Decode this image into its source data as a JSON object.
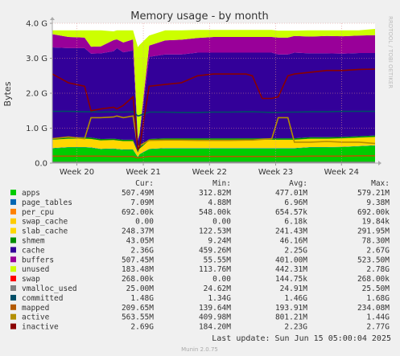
{
  "chart_data": {
    "type": "area",
    "title": "Memory usage - by month",
    "ylabel": "Bytes",
    "watermark": "RRDTOOL / TOBI OETIKER",
    "ylim": [
      0,
      4.0
    ],
    "y_ticks": [
      {
        "value": 0,
        "label": "0.0"
      },
      {
        "value": 1.0,
        "label": "1.0 G"
      },
      {
        "value": 2.0,
        "label": "2.0 G"
      },
      {
        "value": 3.0,
        "label": "3.0 G"
      },
      {
        "value": 4.0,
        "label": "4.0 G"
      }
    ],
    "x_ticks": [
      {
        "label": "Week 20",
        "t": 0.076
      },
      {
        "label": "Week 21",
        "t": 0.282
      },
      {
        "label": "Week 22",
        "t": 0.487
      },
      {
        "label": "Week 23",
        "t": 0.692
      },
      {
        "label": "Week 24",
        "t": 0.896
      }
    ],
    "grid": true,
    "legend_columns": [
      "Cur:",
      "Min:",
      "Avg:",
      "Max:"
    ],
    "x": [
      0.0,
      0.05,
      0.1,
      0.12,
      0.15,
      0.19,
      0.2,
      0.22,
      0.25,
      0.265,
      0.27,
      0.3,
      0.35,
      0.4,
      0.45,
      0.5,
      0.55,
      0.6,
      0.62,
      0.65,
      0.68,
      0.7,
      0.73,
      0.75,
      0.8,
      0.85,
      0.9,
      0.95,
      1.0
    ],
    "series": [
      {
        "name": "apps",
        "color": "#00cc00",
        "kind": "area",
        "values": [
          0.42,
          0.45,
          0.45,
          0.44,
          0.4,
          0.41,
          0.4,
          0.38,
          0.38,
          0.17,
          0.25,
          0.4,
          0.42,
          0.42,
          0.42,
          0.42,
          0.42,
          0.42,
          0.42,
          0.42,
          0.42,
          0.42,
          0.42,
          0.42,
          0.45,
          0.45,
          0.46,
          0.48,
          0.5
        ]
      },
      {
        "name": "page_tables",
        "color": "#0066b3",
        "kind": "area",
        "values": [
          0.01,
          0.01,
          0.01,
          0.01,
          0.01,
          0.01,
          0.01,
          0.01,
          0.01,
          0.01,
          0.01,
          0.01,
          0.01,
          0.01,
          0.01,
          0.01,
          0.01,
          0.01,
          0.01,
          0.01,
          0.01,
          0.01,
          0.01,
          0.01,
          0.01,
          0.01,
          0.01,
          0.01,
          0.01
        ]
      },
      {
        "name": "per_cpu",
        "color": "#ff8000",
        "kind": "area",
        "values": [
          0.0,
          0.0,
          0.0,
          0.0,
          0.0,
          0.0,
          0.0,
          0.0,
          0.0,
          0.0,
          0.0,
          0.0,
          0.0,
          0.0,
          0.0,
          0.0,
          0.0,
          0.0,
          0.0,
          0.0,
          0.0,
          0.0,
          0.0,
          0.0,
          0.0,
          0.0,
          0.0,
          0.0,
          0.0
        ]
      },
      {
        "name": "swap_cache",
        "color": "#ffcc00",
        "kind": "area",
        "values": [
          0.0,
          0.0,
          0.0,
          0.0,
          0.0,
          0.0,
          0.0,
          0.0,
          0.0,
          0.0,
          0.0,
          0.0,
          0.0,
          0.0,
          0.0,
          0.0,
          0.0,
          0.0,
          0.0,
          0.0,
          0.0,
          0.0,
          0.0,
          0.0,
          0.0,
          0.0,
          0.0,
          0.0,
          0.0
        ]
      },
      {
        "name": "slab_cache",
        "color": "#ffd700",
        "kind": "area",
        "values": [
          0.24,
          0.24,
          0.24,
          0.24,
          0.24,
          0.24,
          0.24,
          0.24,
          0.24,
          0.12,
          0.15,
          0.24,
          0.24,
          0.24,
          0.24,
          0.24,
          0.24,
          0.24,
          0.24,
          0.24,
          0.24,
          0.24,
          0.24,
          0.24,
          0.24,
          0.24,
          0.24,
          0.24,
          0.24
        ]
      },
      {
        "name": "shmem",
        "color": "#008f00",
        "kind": "area",
        "values": [
          0.04,
          0.04,
          0.04,
          0.04,
          0.04,
          0.04,
          0.04,
          0.04,
          0.04,
          0.04,
          0.04,
          0.04,
          0.04,
          0.04,
          0.04,
          0.04,
          0.04,
          0.04,
          0.04,
          0.04,
          0.04,
          0.04,
          0.04,
          0.04,
          0.04,
          0.04,
          0.04,
          0.04,
          0.04
        ]
      },
      {
        "name": "cache",
        "color": "#330099",
        "kind": "area",
        "values": [
          2.6,
          2.55,
          2.55,
          2.4,
          2.45,
          2.5,
          2.6,
          2.5,
          2.55,
          0.3,
          0.35,
          2.35,
          2.4,
          2.4,
          2.45,
          2.45,
          2.45,
          2.45,
          2.45,
          2.45,
          2.45,
          2.4,
          2.4,
          2.45,
          2.4,
          2.4,
          2.38,
          2.38,
          2.36
        ]
      },
      {
        "name": "buffers",
        "color": "#990099",
        "kind": "area",
        "values": [
          0.38,
          0.32,
          0.3,
          0.2,
          0.2,
          0.32,
          0.25,
          0.28,
          0.32,
          0.05,
          0.05,
          0.32,
          0.4,
          0.42,
          0.42,
          0.45,
          0.45,
          0.45,
          0.45,
          0.45,
          0.45,
          0.48,
          0.48,
          0.48,
          0.48,
          0.5,
          0.5,
          0.5,
          0.51
        ]
      },
      {
        "name": "unused",
        "color": "#ccff00",
        "kind": "area",
        "values": [
          0.11,
          0.19,
          0.21,
          0.47,
          0.46,
          0.25,
          0.26,
          0.35,
          0.26,
          2.63,
          2.53,
          0.29,
          0.29,
          0.27,
          0.23,
          0.2,
          0.2,
          0.2,
          0.2,
          0.2,
          0.2,
          0.2,
          0.2,
          0.15,
          0.18,
          0.16,
          0.17,
          0.15,
          0.18
        ]
      },
      {
        "name": "swap",
        "color": "#ff0000",
        "kind": "area",
        "values": [
          0.0,
          0.0,
          0.0,
          0.0,
          0.0,
          0.0,
          0.0,
          0.0,
          0.0,
          0.0,
          0.0,
          0.0,
          0.0,
          0.0,
          0.0,
          0.0,
          0.0,
          0.0,
          0.0,
          0.0,
          0.0,
          0.0,
          0.0,
          0.0,
          0.0,
          0.0,
          0.0,
          0.0,
          0.0
        ]
      },
      {
        "name": "vmalloc_used",
        "color": "#808080",
        "kind": "line",
        "values": [
          0.025,
          0.025,
          0.025,
          0.025,
          0.025,
          0.025,
          0.025,
          0.025,
          0.025,
          0.025,
          0.025,
          0.025,
          0.025,
          0.025,
          0.025,
          0.025,
          0.025,
          0.025,
          0.025,
          0.025,
          0.025,
          0.025,
          0.025,
          0.025,
          0.025,
          0.025,
          0.025,
          0.025,
          0.025
        ]
      },
      {
        "name": "committed",
        "color": "#004d66",
        "kind": "line",
        "values": [
          1.48,
          1.48,
          1.47,
          1.47,
          1.46,
          1.47,
          1.46,
          1.46,
          1.47,
          1.35,
          1.36,
          1.46,
          1.46,
          1.45,
          1.45,
          1.46,
          1.46,
          1.47,
          1.47,
          1.46,
          1.45,
          1.45,
          1.46,
          1.46,
          1.47,
          1.47,
          1.48,
          1.48,
          1.48
        ]
      },
      {
        "name": "mapped",
        "color": "#b35a00",
        "kind": "line",
        "values": [
          0.2,
          0.2,
          0.2,
          0.2,
          0.2,
          0.19,
          0.19,
          0.19,
          0.19,
          0.15,
          0.16,
          0.19,
          0.19,
          0.19,
          0.19,
          0.19,
          0.19,
          0.19,
          0.19,
          0.19,
          0.19,
          0.19,
          0.19,
          0.19,
          0.2,
          0.2,
          0.2,
          0.21,
          0.21
        ]
      },
      {
        "name": "active",
        "color": "#b38f00",
        "kind": "line",
        "values": [
          0.7,
          0.75,
          0.7,
          1.3,
          1.3,
          1.32,
          1.35,
          1.3,
          1.35,
          0.45,
          0.5,
          0.65,
          0.66,
          0.66,
          0.65,
          0.65,
          0.65,
          0.66,
          0.66,
          0.68,
          0.7,
          1.3,
          1.3,
          0.6,
          0.6,
          0.62,
          0.6,
          0.6,
          0.56
        ]
      },
      {
        "name": "inactive",
        "color": "#8a0000",
        "kind": "line",
        "values": [
          2.55,
          2.3,
          2.2,
          1.5,
          1.55,
          1.6,
          1.55,
          1.65,
          1.9,
          0.4,
          0.45,
          2.2,
          2.25,
          2.3,
          2.5,
          2.55,
          2.55,
          2.55,
          2.5,
          1.85,
          1.85,
          1.9,
          2.5,
          2.55,
          2.6,
          2.65,
          2.65,
          2.68,
          2.69
        ]
      }
    ],
    "legend": [
      {
        "name": "apps",
        "color": "#00cc00",
        "cur": "507.49M",
        "min": "312.82M",
        "avg": "477.01M",
        "max": "579.21M"
      },
      {
        "name": "page_tables",
        "color": "#0066b3",
        "cur": "7.09M",
        "min": "4.88M",
        "avg": "6.96M",
        "max": "9.38M"
      },
      {
        "name": "per_cpu",
        "color": "#ff8000",
        "cur": "692.00k",
        "min": "548.00k",
        "avg": "654.57k",
        "max": "692.00k"
      },
      {
        "name": "swap_cache",
        "color": "#ffcc00",
        "cur": "0.00",
        "min": "0.00",
        "avg": "6.18k",
        "max": "19.84k"
      },
      {
        "name": "slab_cache",
        "color": "#ffd700",
        "cur": "248.37M",
        "min": "122.53M",
        "avg": "241.43M",
        "max": "291.95M"
      },
      {
        "name": "shmem",
        "color": "#008f00",
        "cur": "43.05M",
        "min": "9.24M",
        "avg": "46.16M",
        "max": "78.30M"
      },
      {
        "name": "cache",
        "color": "#330099",
        "cur": "2.36G",
        "min": "459.26M",
        "avg": "2.25G",
        "max": "2.67G"
      },
      {
        "name": "buffers",
        "color": "#990099",
        "cur": "507.45M",
        "min": "55.55M",
        "avg": "401.00M",
        "max": "523.50M"
      },
      {
        "name": "unused",
        "color": "#ccff00",
        "cur": "183.48M",
        "min": "113.76M",
        "avg": "442.31M",
        "max": "2.78G"
      },
      {
        "name": "swap",
        "color": "#ff0000",
        "cur": "268.00k",
        "min": "0.00",
        "avg": "144.75k",
        "max": "268.00k"
      },
      {
        "name": "vmalloc_used",
        "color": "#808080",
        "cur": "25.00M",
        "min": "24.62M",
        "avg": "24.91M",
        "max": "25.50M"
      },
      {
        "name": "committed",
        "color": "#004d66",
        "cur": "1.48G",
        "min": "1.34G",
        "avg": "1.46G",
        "max": "1.68G"
      },
      {
        "name": "mapped",
        "color": "#b35a00",
        "cur": "209.65M",
        "min": "139.64M",
        "avg": "193.91M",
        "max": "234.08M"
      },
      {
        "name": "active",
        "color": "#b38f00",
        "cur": "563.55M",
        "min": "409.98M",
        "avg": "801.21M",
        "max": "1.44G"
      },
      {
        "name": "inactive",
        "color": "#8a0000",
        "cur": "2.69G",
        "min": "184.20M",
        "avg": "2.23G",
        "max": "2.77G"
      }
    ],
    "last_update": "Last update: Sun Jun 15 05:00:04 2025",
    "footer": "Munin 2.0.75"
  }
}
